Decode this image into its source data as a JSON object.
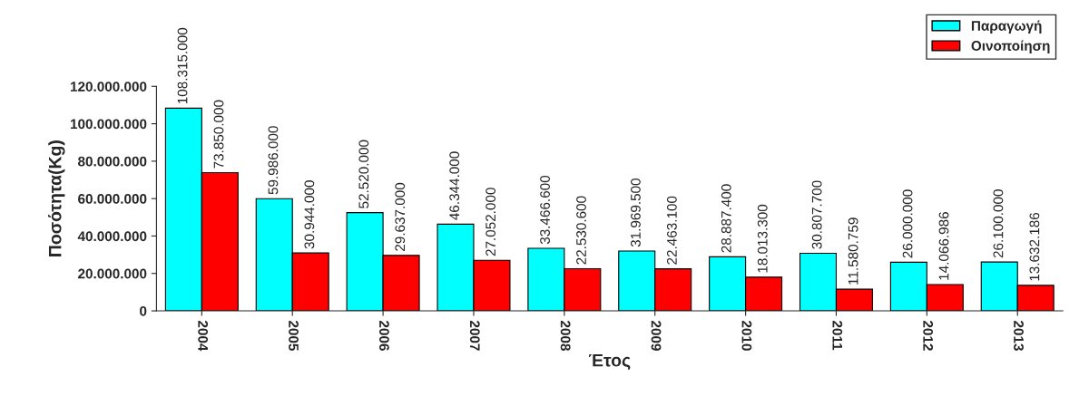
{
  "chart_data": {
    "type": "bar",
    "xlabel": "Έτος",
    "ylabel": "Ποσότητα(Kg)",
    "categories": [
      "2004",
      "2005",
      "2006",
      "2007",
      "2008",
      "2009",
      "2010",
      "2011",
      "2012",
      "2013"
    ],
    "series": [
      {
        "name": "Παραγωγή",
        "color": "#00ffff",
        "values": [
          108315000,
          59986000,
          52520000,
          46344000,
          33466600,
          31969500,
          28887400,
          30807700,
          26000000,
          26100000
        ],
        "value_labels": [
          "108.315.000",
          "59.986.000",
          "52.520.000",
          "46.344.000",
          "33.466.600",
          "31.969.500",
          "28.887.400",
          "30.807.700",
          "26.000.000",
          "26.100.000"
        ]
      },
      {
        "name": "Οινοποίηση",
        "color": "#ff0000",
        "values": [
          73850000,
          30944000,
          29637000,
          27052000,
          22530600,
          22463100,
          18013300,
          11580759,
          14066986,
          13632186
        ],
        "value_labels": [
          "73.850.000",
          "30.944.000",
          "29.637.000",
          "27.052.000",
          "22.530.600",
          "22.463.100",
          "18.013.300",
          "11.580.759",
          "14.066.986",
          "13.632.186"
        ]
      }
    ],
    "ylim": [
      0,
      120000000
    ],
    "yticks": [
      {
        "value": 0,
        "label": "0"
      },
      {
        "value": 20000000,
        "label": "20.000.000"
      },
      {
        "value": 40000000,
        "label": "40.000.000"
      },
      {
        "value": 60000000,
        "label": "60.000.000"
      },
      {
        "value": 80000000,
        "label": "80.000.000"
      },
      {
        "value": 100000000,
        "label": "100.000.000"
      },
      {
        "value": 120000000,
        "label": "120.000.000"
      }
    ],
    "grid": false,
    "legend": "top right"
  }
}
